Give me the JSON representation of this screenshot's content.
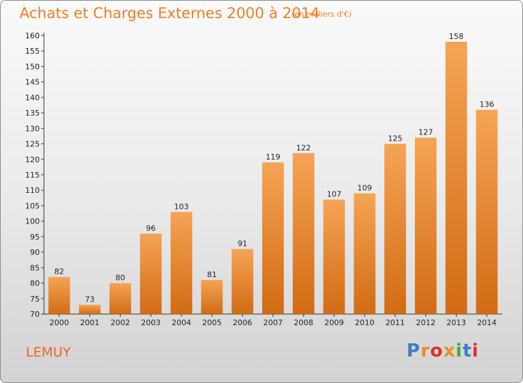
{
  "title": "Achats et Charges Externes 2000 à 2014",
  "subtitle": "(en milliers d'€)",
  "commune": "LEMUY",
  "brand": {
    "letters": [
      "P",
      "r",
      "o",
      "x",
      "i",
      "t",
      "i"
    ],
    "colors": [
      "#3d7cc9",
      "#e9901e",
      "#d6332b",
      "#e9901e",
      "#4ba643",
      "#3d7cc9",
      "#d6332b"
    ]
  },
  "colors": {
    "accent": "#f07e22",
    "bar_top": "#f5a455",
    "bar_bottom": "#d26b14"
  },
  "chart_data": {
    "type": "bar",
    "categories": [
      "2000",
      "2001",
      "2002",
      "2003",
      "2004",
      "2005",
      "2006",
      "2007",
      "2008",
      "2009",
      "2010",
      "2011",
      "2012",
      "2013",
      "2014"
    ],
    "values": [
      82,
      73,
      80,
      96,
      103,
      81,
      91,
      119,
      122,
      107,
      109,
      125,
      127,
      158,
      136
    ],
    "ylim": [
      70,
      160
    ],
    "yticks": [
      70,
      75,
      80,
      85,
      90,
      95,
      100,
      105,
      110,
      115,
      120,
      125,
      130,
      135,
      140,
      145,
      150,
      155,
      160
    ],
    "grid": false,
    "legend": "none"
  }
}
